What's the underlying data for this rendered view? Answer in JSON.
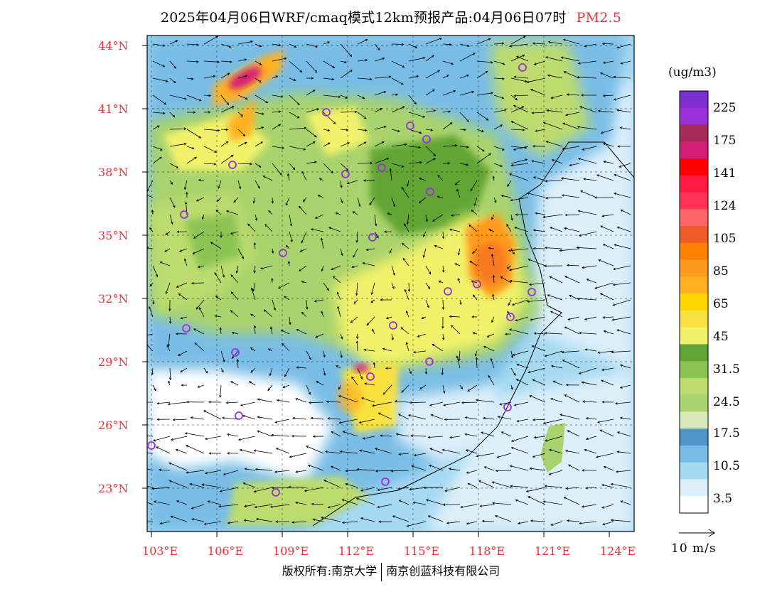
{
  "title": {
    "main": "2025年04月06日WRF/cmaq模式12km预报产品:04月06日07时",
    "variable": "PM2.5"
  },
  "axes": {
    "latitudes": [
      "44°N",
      "41°N",
      "38°N",
      "35°N",
      "32°N",
      "29°N",
      "26°N",
      "23°N"
    ],
    "longitudes": [
      "103°E",
      "106°E",
      "109°E",
      "112°E",
      "115°E",
      "118°E",
      "121°E",
      "124°E"
    ]
  },
  "colorbar": {
    "unit": "(ug/m3)",
    "colors": [
      "#ffffff",
      "#dceffa",
      "#a6d9f2",
      "#79bde6",
      "#4f95c9",
      "#d8e8b8",
      "#a9d36c",
      "#bcdc6e",
      "#8cc452",
      "#62a536",
      "#f1f26a",
      "#f9e23d",
      "#ffd400",
      "#ffb020",
      "#ff9a1f",
      "#ff7f00",
      "#f25a28",
      "#ff6666",
      "#ff3355",
      "#ff1a40",
      "#ff0000",
      "#d11e78",
      "#a52a55",
      "#9b2fd8",
      "#7b2fd0"
    ],
    "labels": [
      "3.5",
      "10.5",
      "17.5",
      "24.5",
      "31.5",
      "45",
      "65",
      "85",
      "105",
      "124",
      "141",
      "175",
      "225"
    ]
  },
  "wind_legend": "10 m/s",
  "footer": {
    "left": "版权所有:南京大学",
    "right": "南京创蓝科技有限公司"
  },
  "colors": {
    "accent": "#e8333a",
    "ocean_blue": "#79bde6",
    "city_marker": "#9b2fd8"
  }
}
